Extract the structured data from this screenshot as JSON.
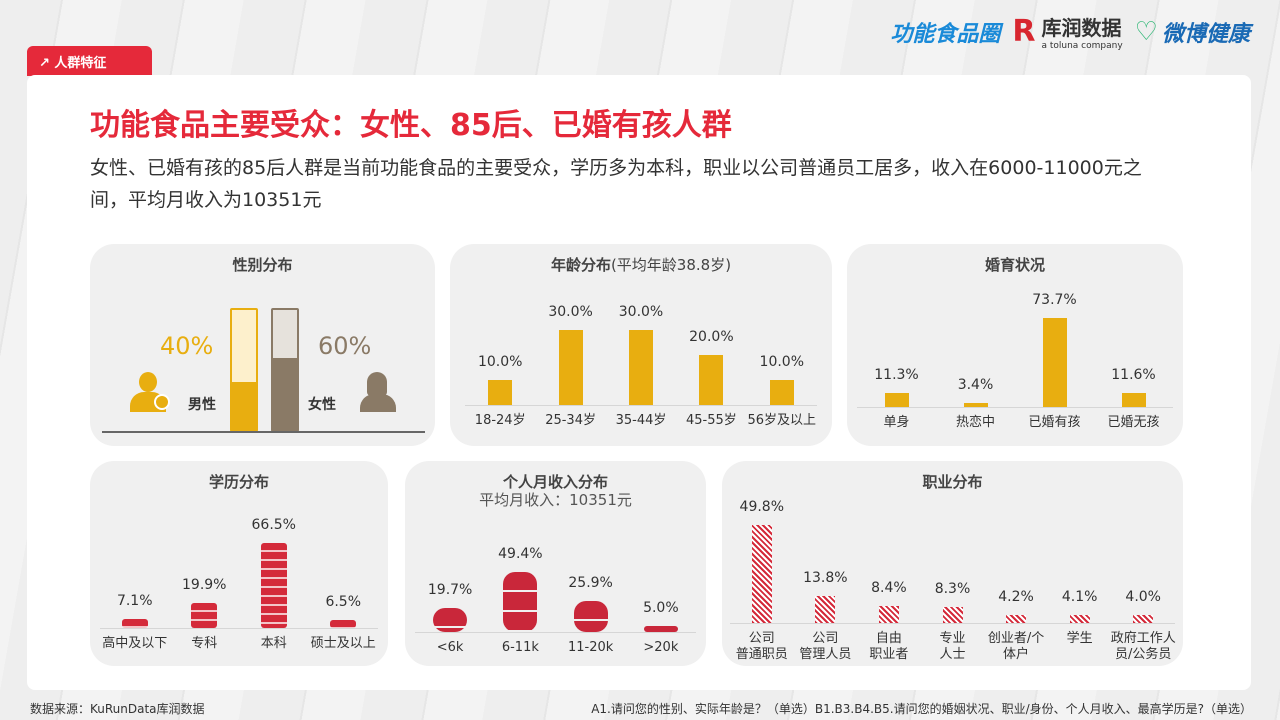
{
  "tag": "人群特征",
  "logos": {
    "functional_food": "功能食品圈",
    "kurun": "库润数据",
    "kurun_sub": "a toluna company",
    "weibo": "微博健康"
  },
  "title": "功能食品主要受众：女性、85后、已婚有孩人群",
  "subtitle": "女性、已婚有孩的85后人群是当前功能食品的主要受众，学历多为本科，职业以公司普通员工居多，收入在6000-11000元之间，平均月收入为10351元",
  "colors": {
    "accent": "#e5293a",
    "yellow": "#e8ae10",
    "brown": "#8a7a66"
  },
  "gender": {
    "title": "性别分布",
    "male_label": "男性",
    "male_pct": "40%",
    "male_value": 40,
    "female_label": "女性",
    "female_pct": "60%",
    "female_value": 60
  },
  "chart_data": [
    {
      "type": "bar",
      "title": "年龄分布",
      "subtitle": "(平均年龄38.8岁)",
      "categories": [
        "18-24岁",
        "25-34岁",
        "35-44岁",
        "45-55岁",
        "56岁及以上"
      ],
      "values": [
        10.0,
        30.0,
        30.0,
        20.0,
        10.0
      ],
      "labels": [
        "10.0%",
        "30.0%",
        "30.0%",
        "20.0%",
        "10.0%"
      ]
    },
    {
      "type": "bar",
      "title": "婚育状况",
      "categories": [
        "单身",
        "热恋中",
        "已婚有孩",
        "已婚无孩"
      ],
      "values": [
        11.3,
        3.4,
        73.7,
        11.6
      ],
      "labels": [
        "11.3%",
        "3.4%",
        "73.7%",
        "11.6%"
      ]
    },
    {
      "type": "bar",
      "title": "学历分布",
      "categories": [
        "高中及以下",
        "专科",
        "本科",
        "硕士及以上"
      ],
      "values": [
        7.1,
        19.9,
        66.5,
        6.5
      ],
      "labels": [
        "7.1%",
        "19.9%",
        "66.5%",
        "6.5%"
      ]
    },
    {
      "type": "bar",
      "title": "个人月收入分布",
      "subtitle": "平均月收入：10351元",
      "categories": [
        "<6k",
        "6-11k",
        "11-20k",
        ">20k"
      ],
      "values": [
        19.7,
        49.4,
        25.9,
        5.0
      ],
      "labels": [
        "19.7%",
        "49.4%",
        "25.9%",
        "5.0%"
      ]
    },
    {
      "type": "bar",
      "title": "职业分布",
      "categories": [
        "公司\n普通职员",
        "公司\n管理人员",
        "自由\n职业者",
        "专业\n人士",
        "创业者/个\n体户",
        "学生",
        "政府工作人\n员/公务员"
      ],
      "values": [
        49.8,
        13.8,
        8.4,
        8.3,
        4.2,
        4.1,
        4.0
      ],
      "labels": [
        "49.8%",
        "13.8%",
        "8.4%",
        "8.3%",
        "4.2%",
        "4.1%",
        "4.0%"
      ]
    }
  ],
  "footer": {
    "source": "数据来源：KuRunData库润数据",
    "question": "A1.请问您的性别、实际年龄是？（单选）B1.B3.B4.B5.请问您的婚姻状况、职业/身份、个人月收入、最高学历是?（单选）"
  }
}
